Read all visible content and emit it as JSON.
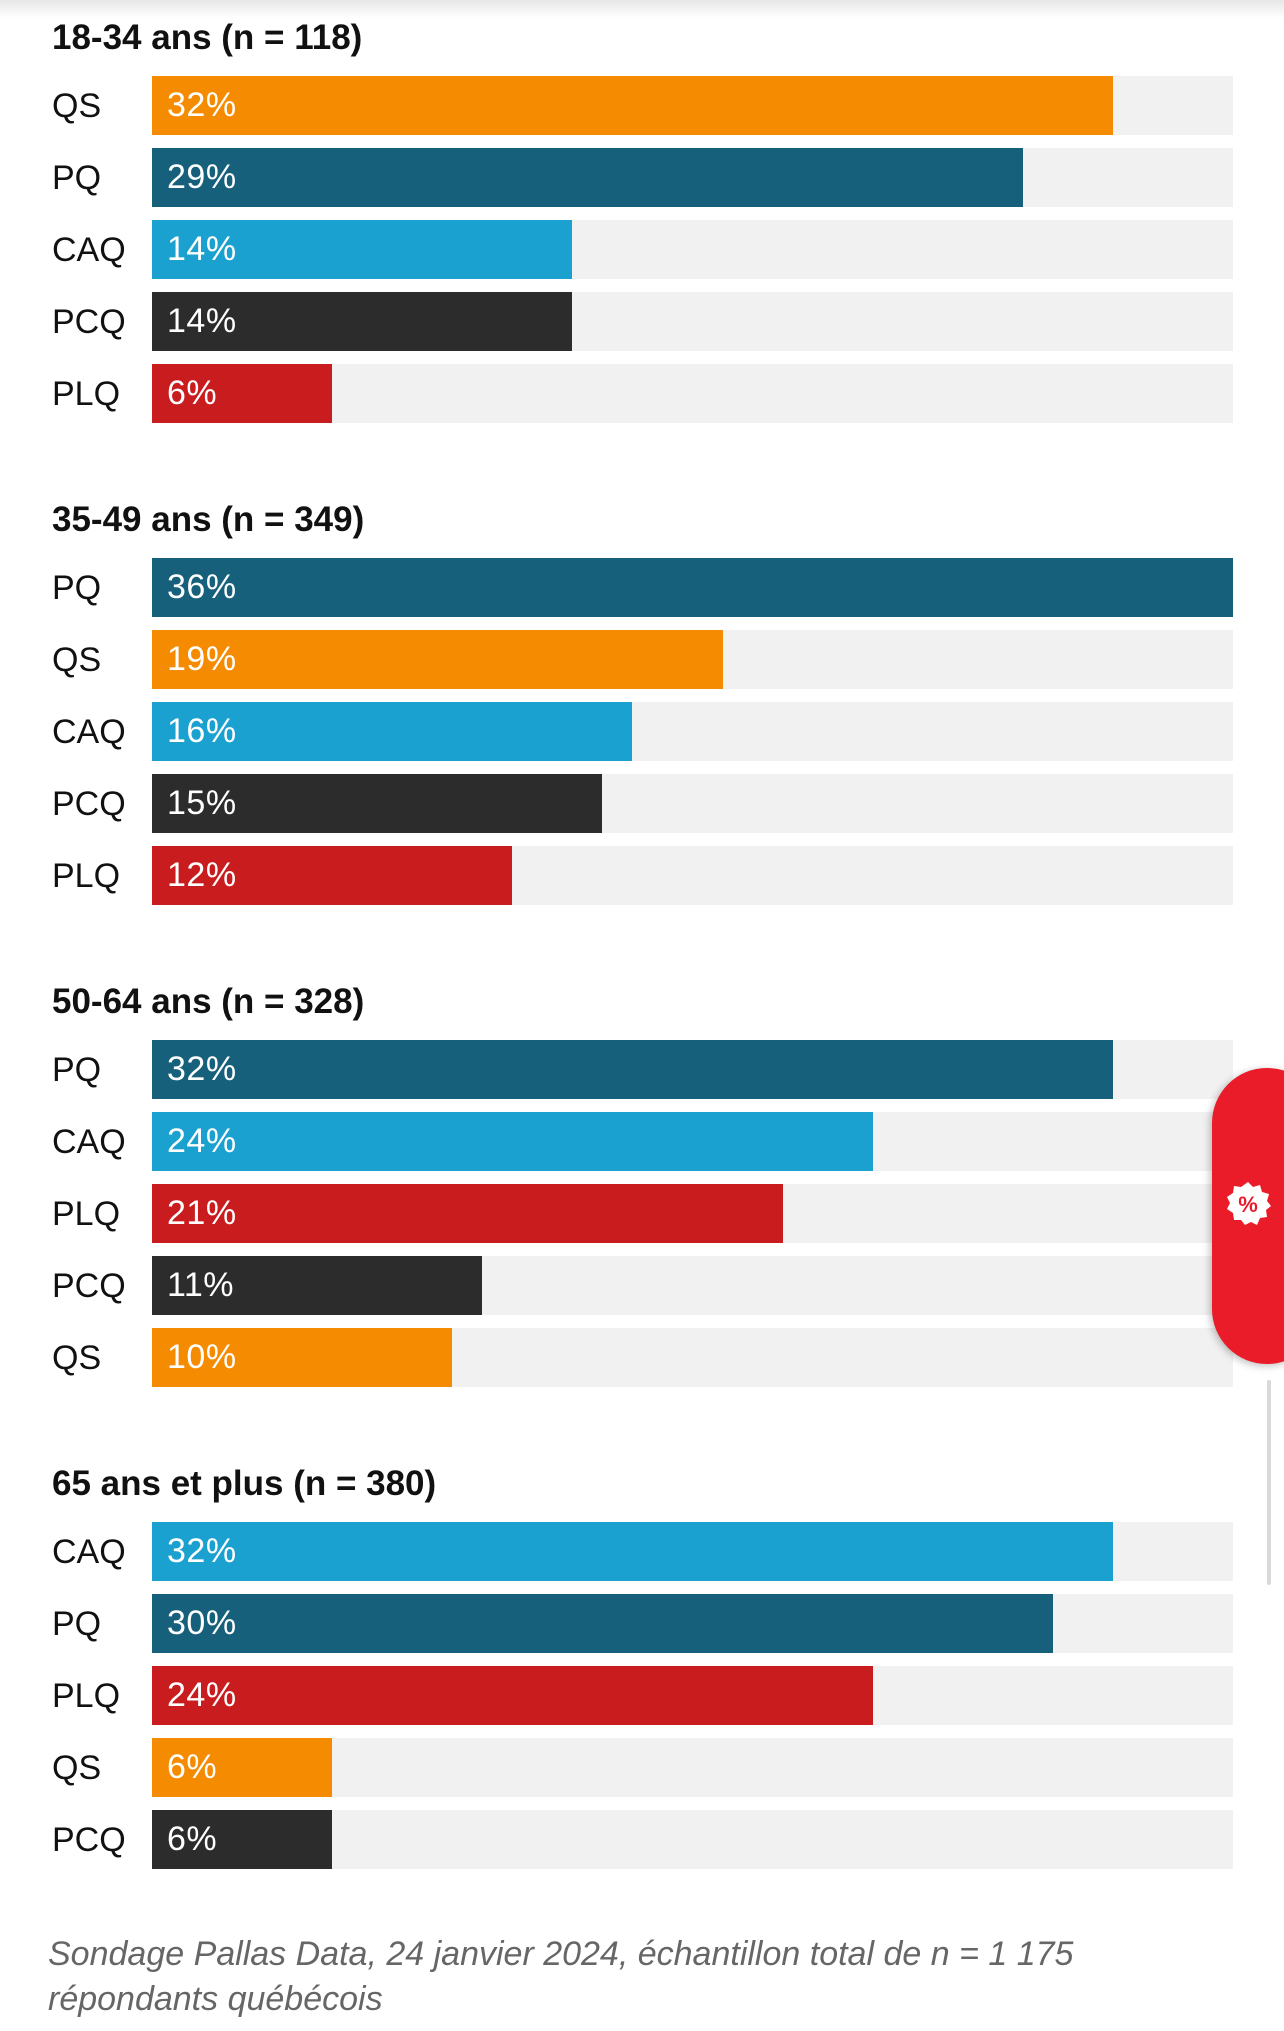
{
  "chart_data": [
    {
      "type": "bar",
      "title": "18-34 ans (n = 118)",
      "categories": [
        "QS",
        "PQ",
        "CAQ",
        "PCQ",
        "PLQ"
      ],
      "values": [
        32,
        29,
        14,
        14,
        6
      ],
      "labels": [
        "32%",
        "29%",
        "14%",
        "14%",
        "6%"
      ],
      "colors": [
        "#f58b00",
        "#17607c",
        "#1ba1d0",
        "#2c2c2c",
        "#c91c1f"
      ],
      "xlim": [
        0,
        36
      ]
    },
    {
      "type": "bar",
      "title": "35-49 ans (n = 349)",
      "categories": [
        "PQ",
        "QS",
        "CAQ",
        "PCQ",
        "PLQ"
      ],
      "values": [
        36,
        19,
        16,
        15,
        12
      ],
      "labels": [
        "36%",
        "19%",
        "16%",
        "15%",
        "12%"
      ],
      "colors": [
        "#17607c",
        "#f58b00",
        "#1ba1d0",
        "#2c2c2c",
        "#c91c1f"
      ],
      "xlim": [
        0,
        36
      ]
    },
    {
      "type": "bar",
      "title": "50-64 ans (n = 328)",
      "categories": [
        "PQ",
        "CAQ",
        "PLQ",
        "PCQ",
        "QS"
      ],
      "values": [
        32,
        24,
        21,
        11,
        10
      ],
      "labels": [
        "32%",
        "24%",
        "21%",
        "11%",
        "10%"
      ],
      "colors": [
        "#17607c",
        "#1ba1d0",
        "#c91c1f",
        "#2c2c2c",
        "#f58b00"
      ],
      "xlim": [
        0,
        36
      ]
    },
    {
      "type": "bar",
      "title": "65 ans et plus (n = 380)",
      "categories": [
        "CAQ",
        "PQ",
        "PLQ",
        "QS",
        "PCQ"
      ],
      "values": [
        32,
        30,
        24,
        6,
        6
      ],
      "labels": [
        "32%",
        "30%",
        "24%",
        "6%",
        "6%"
      ],
      "colors": [
        "#1ba1d0",
        "#17607c",
        "#c91c1f",
        "#f58b00",
        "#2c2c2c"
      ],
      "xlim": [
        0,
        36
      ]
    }
  ],
  "source": "Sondage Pallas Data, 24 janvier 2024, échantillon total de n = 1 175 répondants québécois",
  "fab": {
    "icon": "percent-badge-icon",
    "color": "#ea1c2a"
  }
}
